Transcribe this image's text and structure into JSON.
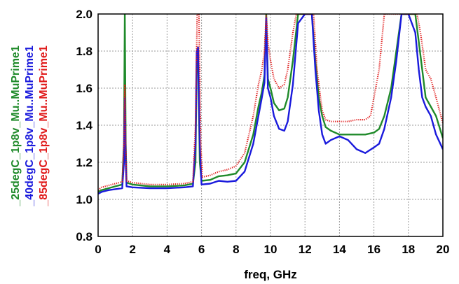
{
  "chart_data": {
    "type": "line",
    "xlabel": "freq, GHz",
    "ylabel": "",
    "xlim": [
      0,
      20
    ],
    "ylim": [
      0.8,
      2.0
    ],
    "xticks": [
      "0",
      "2",
      "4",
      "6",
      "8",
      "10",
      "12",
      "14",
      "16",
      "18",
      "20"
    ],
    "yticks": [
      "0.8",
      "1.0",
      "1.2",
      "1.4",
      "1.6",
      "1.8",
      "2.0"
    ],
    "grid": true,
    "legend_placement": "left, rotated vertical",
    "series": [
      {
        "name": "_25degC_1p8v_Mu..MuPrime1",
        "color": "#1f8a2a",
        "style": "line",
        "points": [
          [
            0,
            1.04
          ],
          [
            0.2,
            1.05
          ],
          [
            0.6,
            1.06
          ],
          [
            1.0,
            1.07
          ],
          [
            1.4,
            1.08
          ],
          [
            1.5,
            1.3
          ],
          [
            1.55,
            2.0
          ],
          [
            1.6,
            1.3
          ],
          [
            1.65,
            1.09
          ],
          [
            2.0,
            1.08
          ],
          [
            3.0,
            1.07
          ],
          [
            4.0,
            1.07
          ],
          [
            5.0,
            1.075
          ],
          [
            5.5,
            1.085
          ],
          [
            5.65,
            1.2
          ],
          [
            5.72,
            1.72
          ],
          [
            5.8,
            1.76
          ],
          [
            5.9,
            1.2
          ],
          [
            6.0,
            1.1
          ],
          [
            6.5,
            1.105
          ],
          [
            7.0,
            1.125
          ],
          [
            7.5,
            1.13
          ],
          [
            8.0,
            1.14
          ],
          [
            8.5,
            1.2
          ],
          [
            9.0,
            1.35
          ],
          [
            9.3,
            1.5
          ],
          [
            9.5,
            1.58
          ],
          [
            9.65,
            1.67
          ],
          [
            9.75,
            2.0
          ],
          [
            9.85,
            1.65
          ],
          [
            10.0,
            1.6
          ],
          [
            10.2,
            1.52
          ],
          [
            10.5,
            1.48
          ],
          [
            10.8,
            1.49
          ],
          [
            11.0,
            1.55
          ],
          [
            11.3,
            1.75
          ],
          [
            11.6,
            2.0
          ],
          [
            12.0,
            2.0
          ],
          [
            12.4,
            2.0
          ],
          [
            12.6,
            1.75
          ],
          [
            12.8,
            1.55
          ],
          [
            13.0,
            1.45
          ],
          [
            13.2,
            1.39
          ],
          [
            13.5,
            1.37
          ],
          [
            14.0,
            1.35
          ],
          [
            14.5,
            1.35
          ],
          [
            15.0,
            1.35
          ],
          [
            15.5,
            1.35
          ],
          [
            16.0,
            1.36
          ],
          [
            16.3,
            1.38
          ],
          [
            16.6,
            1.45
          ],
          [
            17.0,
            1.6
          ],
          [
            17.3,
            1.8
          ],
          [
            17.6,
            2.0
          ],
          [
            18.0,
            2.0
          ],
          [
            18.4,
            2.0
          ],
          [
            18.6,
            1.85
          ],
          [
            18.8,
            1.7
          ],
          [
            19.0,
            1.55
          ],
          [
            19.3,
            1.5
          ],
          [
            19.6,
            1.45
          ],
          [
            20.0,
            1.33
          ]
        ]
      },
      {
        "name": "_40degC_1p8v_Mu..MuPrime1",
        "color": "#1a1adc",
        "style": "line",
        "points": [
          [
            0,
            1.03
          ],
          [
            0.2,
            1.04
          ],
          [
            0.6,
            1.05
          ],
          [
            1.0,
            1.055
          ],
          [
            1.4,
            1.06
          ],
          [
            1.5,
            1.2
          ],
          [
            1.55,
            1.55
          ],
          [
            1.6,
            1.2
          ],
          [
            1.65,
            1.07
          ],
          [
            2.0,
            1.065
          ],
          [
            3.0,
            1.06
          ],
          [
            4.0,
            1.06
          ],
          [
            5.0,
            1.065
          ],
          [
            5.5,
            1.07
          ],
          [
            5.65,
            1.3
          ],
          [
            5.72,
            1.8
          ],
          [
            5.8,
            1.82
          ],
          [
            5.9,
            1.3
          ],
          [
            6.0,
            1.08
          ],
          [
            6.5,
            1.085
          ],
          [
            7.0,
            1.1
          ],
          [
            7.5,
            1.095
          ],
          [
            8.0,
            1.1
          ],
          [
            8.5,
            1.15
          ],
          [
            9.0,
            1.3
          ],
          [
            9.3,
            1.45
          ],
          [
            9.5,
            1.55
          ],
          [
            9.65,
            1.63
          ],
          [
            9.75,
            1.98
          ],
          [
            9.85,
            1.6
          ],
          [
            10.0,
            1.55
          ],
          [
            10.2,
            1.45
          ],
          [
            10.5,
            1.38
          ],
          [
            10.8,
            1.37
          ],
          [
            11.0,
            1.42
          ],
          [
            11.3,
            1.62
          ],
          [
            11.6,
            1.95
          ],
          [
            12.0,
            2.0
          ],
          [
            12.4,
            2.0
          ],
          [
            12.6,
            1.7
          ],
          [
            12.8,
            1.48
          ],
          [
            13.0,
            1.35
          ],
          [
            13.2,
            1.3
          ],
          [
            13.5,
            1.32
          ],
          [
            14.0,
            1.34
          ],
          [
            14.5,
            1.32
          ],
          [
            15.0,
            1.27
          ],
          [
            15.5,
            1.25
          ],
          [
            16.0,
            1.28
          ],
          [
            16.3,
            1.3
          ],
          [
            16.6,
            1.38
          ],
          [
            17.0,
            1.55
          ],
          [
            17.3,
            1.75
          ],
          [
            17.6,
            2.0
          ],
          [
            18.0,
            2.0
          ],
          [
            18.4,
            1.9
          ],
          [
            18.6,
            1.7
          ],
          [
            18.8,
            1.55
          ],
          [
            19.0,
            1.5
          ],
          [
            19.3,
            1.45
          ],
          [
            19.6,
            1.35
          ],
          [
            20.0,
            1.27
          ]
        ]
      },
      {
        "name": "_85degC_1p8v_Mu..MuPrime1",
        "color": "#e01a1a",
        "style": "line",
        "points": [
          [
            0,
            1.05
          ],
          [
            0.2,
            1.065
          ],
          [
            0.6,
            1.075
          ],
          [
            1.0,
            1.085
          ],
          [
            1.4,
            1.095
          ],
          [
            1.5,
            1.3
          ],
          [
            1.55,
            1.62
          ],
          [
            1.6,
            1.3
          ],
          [
            1.65,
            1.1
          ],
          [
            2.0,
            1.09
          ],
          [
            3.0,
            1.08
          ],
          [
            4.0,
            1.08
          ],
          [
            5.0,
            1.085
          ],
          [
            5.5,
            1.095
          ],
          [
            5.65,
            1.4
          ],
          [
            5.75,
            2.0
          ],
          [
            5.85,
            2.0
          ],
          [
            5.95,
            1.3
          ],
          [
            6.05,
            1.12
          ],
          [
            6.5,
            1.13
          ],
          [
            7.0,
            1.15
          ],
          [
            7.5,
            1.16
          ],
          [
            8.0,
            1.18
          ],
          [
            8.5,
            1.25
          ],
          [
            9.0,
            1.45
          ],
          [
            9.3,
            1.62
          ],
          [
            9.5,
            1.7
          ],
          [
            9.65,
            1.8
          ],
          [
            9.75,
            2.0
          ],
          [
            9.85,
            1.85
          ],
          [
            10.0,
            1.75
          ],
          [
            10.2,
            1.65
          ],
          [
            10.5,
            1.6
          ],
          [
            10.8,
            1.62
          ],
          [
            11.0,
            1.7
          ],
          [
            11.3,
            1.9
          ],
          [
            11.5,
            2.0
          ],
          [
            12.0,
            2.0
          ],
          [
            12.5,
            2.0
          ],
          [
            12.7,
            1.7
          ],
          [
            12.9,
            1.55
          ],
          [
            13.0,
            1.48
          ],
          [
            13.2,
            1.43
          ],
          [
            13.5,
            1.42
          ],
          [
            14.0,
            1.42
          ],
          [
            14.5,
            1.42
          ],
          [
            15.0,
            1.43
          ],
          [
            15.5,
            1.43
          ],
          [
            15.8,
            1.45
          ],
          [
            16.0,
            1.55
          ],
          [
            16.3,
            1.7
          ],
          [
            16.6,
            2.0
          ],
          [
            17.0,
            2.0
          ],
          [
            18.0,
            2.0
          ],
          [
            18.5,
            2.0
          ],
          [
            18.7,
            1.9
          ],
          [
            19.0,
            1.7
          ],
          [
            19.3,
            1.65
          ],
          [
            19.6,
            1.55
          ],
          [
            20.0,
            1.41
          ]
        ]
      }
    ]
  },
  "colors": {
    "grid": "#999999",
    "axis": "#000000"
  }
}
